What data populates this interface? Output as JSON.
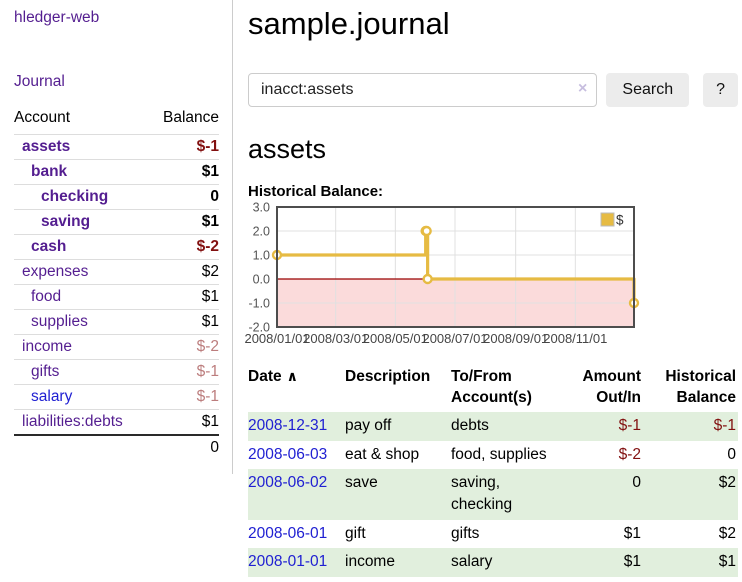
{
  "colors": {
    "link_purple": "#541e90",
    "link_blue": "#2020d2",
    "negative_strong": "#821010",
    "negative_muted": "#bc7d7d",
    "row_stripe_green": "#e1efdd",
    "button_gray": "#ececec",
    "divider_gray": "#ccc"
  },
  "sidebar": {
    "brand": "hledger-web",
    "journal_link": "Journal",
    "accounts_table": {
      "col_account": "Account",
      "col_balance": "Balance",
      "rows": [
        {
          "name": "assets",
          "balance": "$-1",
          "indent": 1,
          "bold": true,
          "balance_class": "neg-strong",
          "link_class": "purple"
        },
        {
          "name": "bank",
          "balance": "$1",
          "indent": 2,
          "bold": true,
          "balance_class": "pos",
          "link_class": "purple"
        },
        {
          "name": "checking",
          "balance": "0",
          "indent": 3,
          "bold": true,
          "balance_class": "pos",
          "link_class": "purple"
        },
        {
          "name": "saving",
          "balance": "$1",
          "indent": 3,
          "bold": true,
          "balance_class": "pos",
          "link_class": "purple"
        },
        {
          "name": "cash",
          "balance": "$-2",
          "indent": 2,
          "bold": true,
          "balance_class": "neg-strong",
          "link_class": "purple"
        },
        {
          "name": "expenses",
          "balance": "$2",
          "indent": 1,
          "bold": false,
          "balance_class": "pos",
          "link_class": "purple"
        },
        {
          "name": "food",
          "balance": "$1",
          "indent": 2,
          "bold": false,
          "balance_class": "pos",
          "link_class": "purple"
        },
        {
          "name": "supplies",
          "balance": "$1",
          "indent": 2,
          "bold": false,
          "balance_class": "pos",
          "link_class": "purple"
        },
        {
          "name": "income",
          "balance": "$-2",
          "indent": 1,
          "bold": false,
          "balance_class": "neg-muted",
          "link_class": "purple"
        },
        {
          "name": "gifts",
          "balance": "$-1",
          "indent": 2,
          "bold": false,
          "balance_class": "neg-muted",
          "link_class": "purple"
        },
        {
          "name": "salary",
          "balance": "$-1",
          "indent": 2,
          "bold": false,
          "balance_class": "neg-muted",
          "link_class": "blue"
        },
        {
          "name": "liabilities:debts",
          "balance": "$1",
          "indent": 1,
          "bold": false,
          "balance_class": "pos",
          "link_class": "purple"
        }
      ],
      "total": "0"
    }
  },
  "main": {
    "title": "sample.journal",
    "search": {
      "value": "inacct:assets",
      "clear_icon": "×",
      "search_button": "Search",
      "help_button": "?"
    },
    "heading": "assets",
    "chart_title": "Historical Balance:",
    "register": {
      "headers": {
        "date": "Date",
        "sort_icon": "∧",
        "description": "Description",
        "account": "To/From Account(s)",
        "amount": "Amount Out/In",
        "balance": "Historical Balance"
      },
      "rows": [
        {
          "date": "2008-12-31",
          "description": "pay off",
          "accounts": "debts",
          "amount": "$-1",
          "amount_negative": true,
          "balance": "$-1",
          "balance_negative": true
        },
        {
          "date": "2008-06-03",
          "description": "eat & shop",
          "accounts": "food, supplies",
          "amount": "$-2",
          "amount_negative": true,
          "balance": "0",
          "balance_negative": false
        },
        {
          "date": "2008-06-02",
          "description": "save",
          "accounts": "saving, checking",
          "amount": "0",
          "amount_negative": false,
          "balance": "$2",
          "balance_negative": false
        },
        {
          "date": "2008-06-01",
          "description": "gift",
          "accounts": "gifts",
          "amount": "$1",
          "amount_negative": false,
          "balance": "$2",
          "balance_negative": false
        },
        {
          "date": "2008-01-01",
          "description": "income",
          "accounts": "salary",
          "amount": "$1",
          "amount_negative": false,
          "balance": "$1",
          "balance_negative": false
        }
      ]
    }
  },
  "chart_data": {
    "type": "line",
    "step": true,
    "title": "Historical Balance:",
    "series": [
      {
        "name": "$",
        "points": [
          [
            "2008-01-01",
            1
          ],
          [
            "2008-06-01",
            2
          ],
          [
            "2008-06-02",
            2
          ],
          [
            "2008-06-03",
            0
          ],
          [
            "2008-12-31",
            -1
          ]
        ]
      }
    ],
    "x_range": [
      "2008-01-01",
      "2008-12-31"
    ],
    "ylim": [
      -2,
      3
    ],
    "y_ticks": [
      3,
      2,
      1,
      0,
      -1,
      -2
    ],
    "x_ticks": [
      "2008/01/01",
      "2008/03/01",
      "2008/05/01",
      "2008/07/01",
      "2008/09/01",
      "2008/11/01"
    ],
    "legend": {
      "label": "$",
      "position": "top-right"
    },
    "grid": true,
    "colors": {
      "line": "#e6bb43",
      "marker_fill": "#ffffff",
      "negative_fill": "#fbdbdb",
      "zero_line": "#990000",
      "grid_line": "#e0e0e0",
      "plot_border": "#4d4d4d"
    }
  }
}
